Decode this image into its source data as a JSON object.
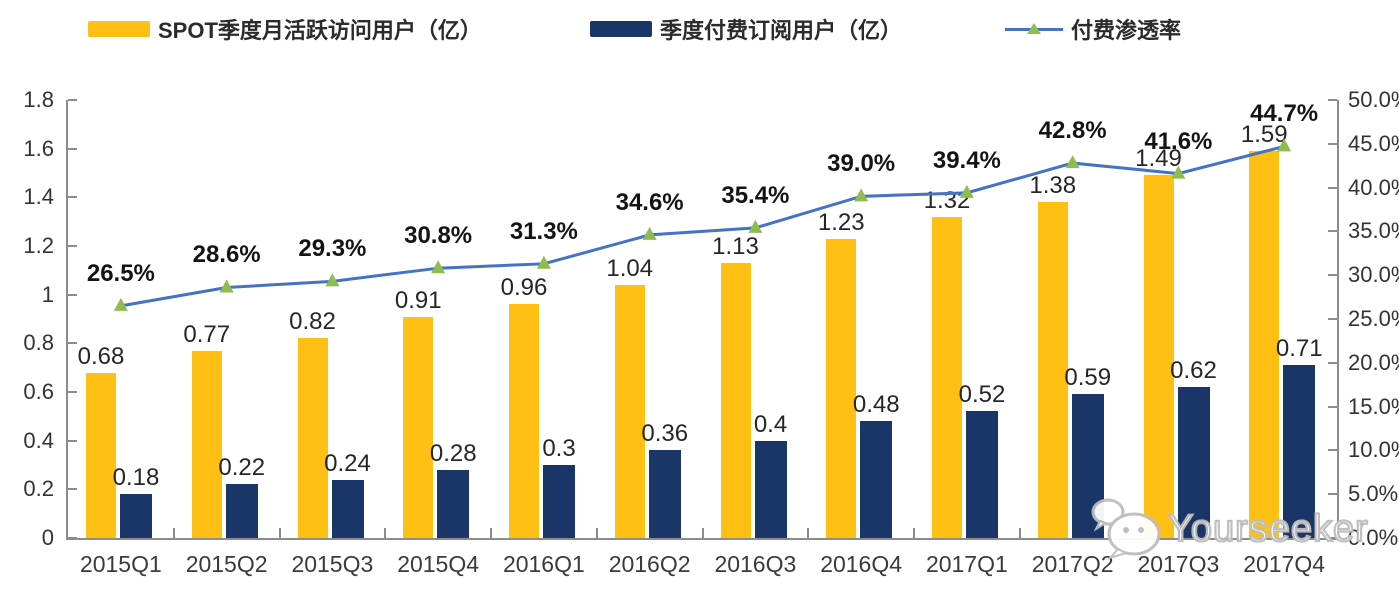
{
  "legend": {
    "items": [
      {
        "label": "SPOT季度月活跃访问用户（亿）",
        "color": "#FFC013"
      },
      {
        "label": "季度付费订阅用户（亿）",
        "color": "#1A3668"
      },
      {
        "label": "付费渗透率",
        "line_color": "#4472C4",
        "marker_color": "#8FBC4F"
      }
    ]
  },
  "watermark": {
    "text": "Yourseeker",
    "icon": "wechat-icon"
  },
  "chart_data": {
    "type": "bar",
    "categories": [
      "2015Q1",
      "2015Q2",
      "2015Q3",
      "2015Q4",
      "2016Q1",
      "2016Q2",
      "2016Q3",
      "2016Q4",
      "2017Q1",
      "2017Q2",
      "2017Q3",
      "2017Q4"
    ],
    "series": [
      {
        "name": "SPOT季度月活跃访问用户（亿）",
        "type": "bar",
        "axis": "left",
        "color": "#FFC013",
        "values": [
          0.68,
          0.77,
          0.82,
          0.91,
          0.96,
          1.04,
          1.13,
          1.23,
          1.32,
          1.38,
          1.49,
          1.59
        ],
        "labels": [
          "0.68",
          "0.77",
          "0.82",
          "0.91",
          "0.96",
          "1.04",
          "1.13",
          "1.23",
          "1.32",
          "1.38",
          "1.49",
          "1.59"
        ]
      },
      {
        "name": "季度付费订阅用户（亿）",
        "type": "bar",
        "axis": "left",
        "color": "#1A3668",
        "values": [
          0.18,
          0.22,
          0.24,
          0.28,
          0.3,
          0.36,
          0.4,
          0.48,
          0.52,
          0.59,
          0.62,
          0.71
        ],
        "labels": [
          "0.18",
          "0.22",
          "0.24",
          "0.28",
          "0.3",
          "0.36",
          "0.4",
          "0.48",
          "0.52",
          "0.59",
          "0.62",
          "0.71"
        ]
      },
      {
        "name": "付费渗透率",
        "type": "line",
        "axis": "right",
        "color": "#4472C4",
        "marker_color": "#8FBC4F",
        "values": [
          26.5,
          28.6,
          29.3,
          30.8,
          31.3,
          34.6,
          35.4,
          39.0,
          39.4,
          42.8,
          41.6,
          44.7
        ],
        "labels": [
          "26.5%",
          "28.6%",
          "29.3%",
          "30.8%",
          "31.3%",
          "34.6%",
          "35.4%",
          "39.0%",
          "39.4%",
          "42.8%",
          "41.6%",
          "44.7%"
        ]
      }
    ],
    "left_axis": {
      "min": 0,
      "max": 1.8,
      "ticks": [
        "1.8",
        "1.6",
        "1.4",
        "1.2",
        "1",
        "0.8",
        "0.6",
        "0.4",
        "0.2",
        "0"
      ]
    },
    "right_axis": {
      "min": 0,
      "max": 50,
      "ticks": [
        "50.0%",
        "45.0%",
        "40.0%",
        "35.0%",
        "30.0%",
        "25.0%",
        "20.0%",
        "15.0%",
        "10.0%",
        "5.0%",
        "0.0%"
      ]
    },
    "grid": false,
    "legend_position": "top"
  }
}
